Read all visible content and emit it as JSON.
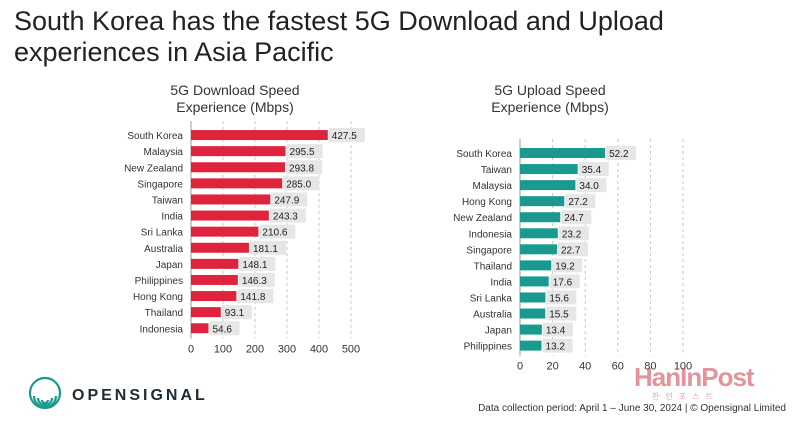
{
  "title": "South Korea has the fastest 5G Download and Upload experiences in Asia Pacific",
  "brand": {
    "name": "OPENSIGNAL",
    "logo_icon": "opensignal-logo-icon"
  },
  "watermark": {
    "text": "HanInPost",
    "sub": "한인포스트"
  },
  "footnote": "Data collection period: April 1 – June 30, 2024 | © Opensignal Limited",
  "chart_data": [
    {
      "type": "bar",
      "orientation": "horizontal",
      "title": "5G Download Speed Experience (Mbps)",
      "categories": [
        "South Korea",
        "Malaysia",
        "New Zealand",
        "Singapore",
        "Taiwan",
        "India",
        "Sri Lanka",
        "Australia",
        "Japan",
        "Philippines",
        "Hong Kong",
        "Thailand",
        "Indonesia"
      ],
      "values": [
        427.5,
        295.5,
        293.8,
        285.0,
        247.9,
        243.3,
        210.6,
        181.1,
        148.1,
        146.3,
        141.8,
        93.1,
        54.6
      ],
      "value_labels": [
        "427.5",
        "295.5",
        "293.8",
        "285.0",
        "247.9",
        "243.3",
        "210.6",
        "181.1",
        "148.1",
        "146.3",
        "141.8",
        "93.1",
        "54.6"
      ],
      "xlim": [
        0,
        500
      ],
      "xticks": [
        "0",
        "100",
        "200",
        "300",
        "400",
        "500"
      ],
      "grid": true,
      "color": "#e0233c"
    },
    {
      "type": "bar",
      "orientation": "horizontal",
      "title": "5G Upload Speed Experience (Mbps)",
      "categories": [
        "South Korea",
        "Taiwan",
        "Malaysia",
        "Hong Kong",
        "New Zealand",
        "Indonesia",
        "Singapore",
        "Thailand",
        "India",
        "Sri Lanka",
        "Australia",
        "Japan",
        "Philippines"
      ],
      "values": [
        52.2,
        35.4,
        34.0,
        27.2,
        24.7,
        23.2,
        22.7,
        19.2,
        17.6,
        15.6,
        15.5,
        13.4,
        13.2
      ],
      "value_labels": [
        "52.2",
        "35.4",
        "34.0",
        "27.2",
        "24.7",
        "23.2",
        "22.7",
        "19.2",
        "17.6",
        "15.6",
        "15.5",
        "13.4",
        "13.2"
      ],
      "xlim": [
        0,
        100
      ],
      "xticks": [
        "0",
        "20",
        "40",
        "60",
        "80",
        "100"
      ],
      "grid": true,
      "color": "#1a9a8e"
    }
  ]
}
